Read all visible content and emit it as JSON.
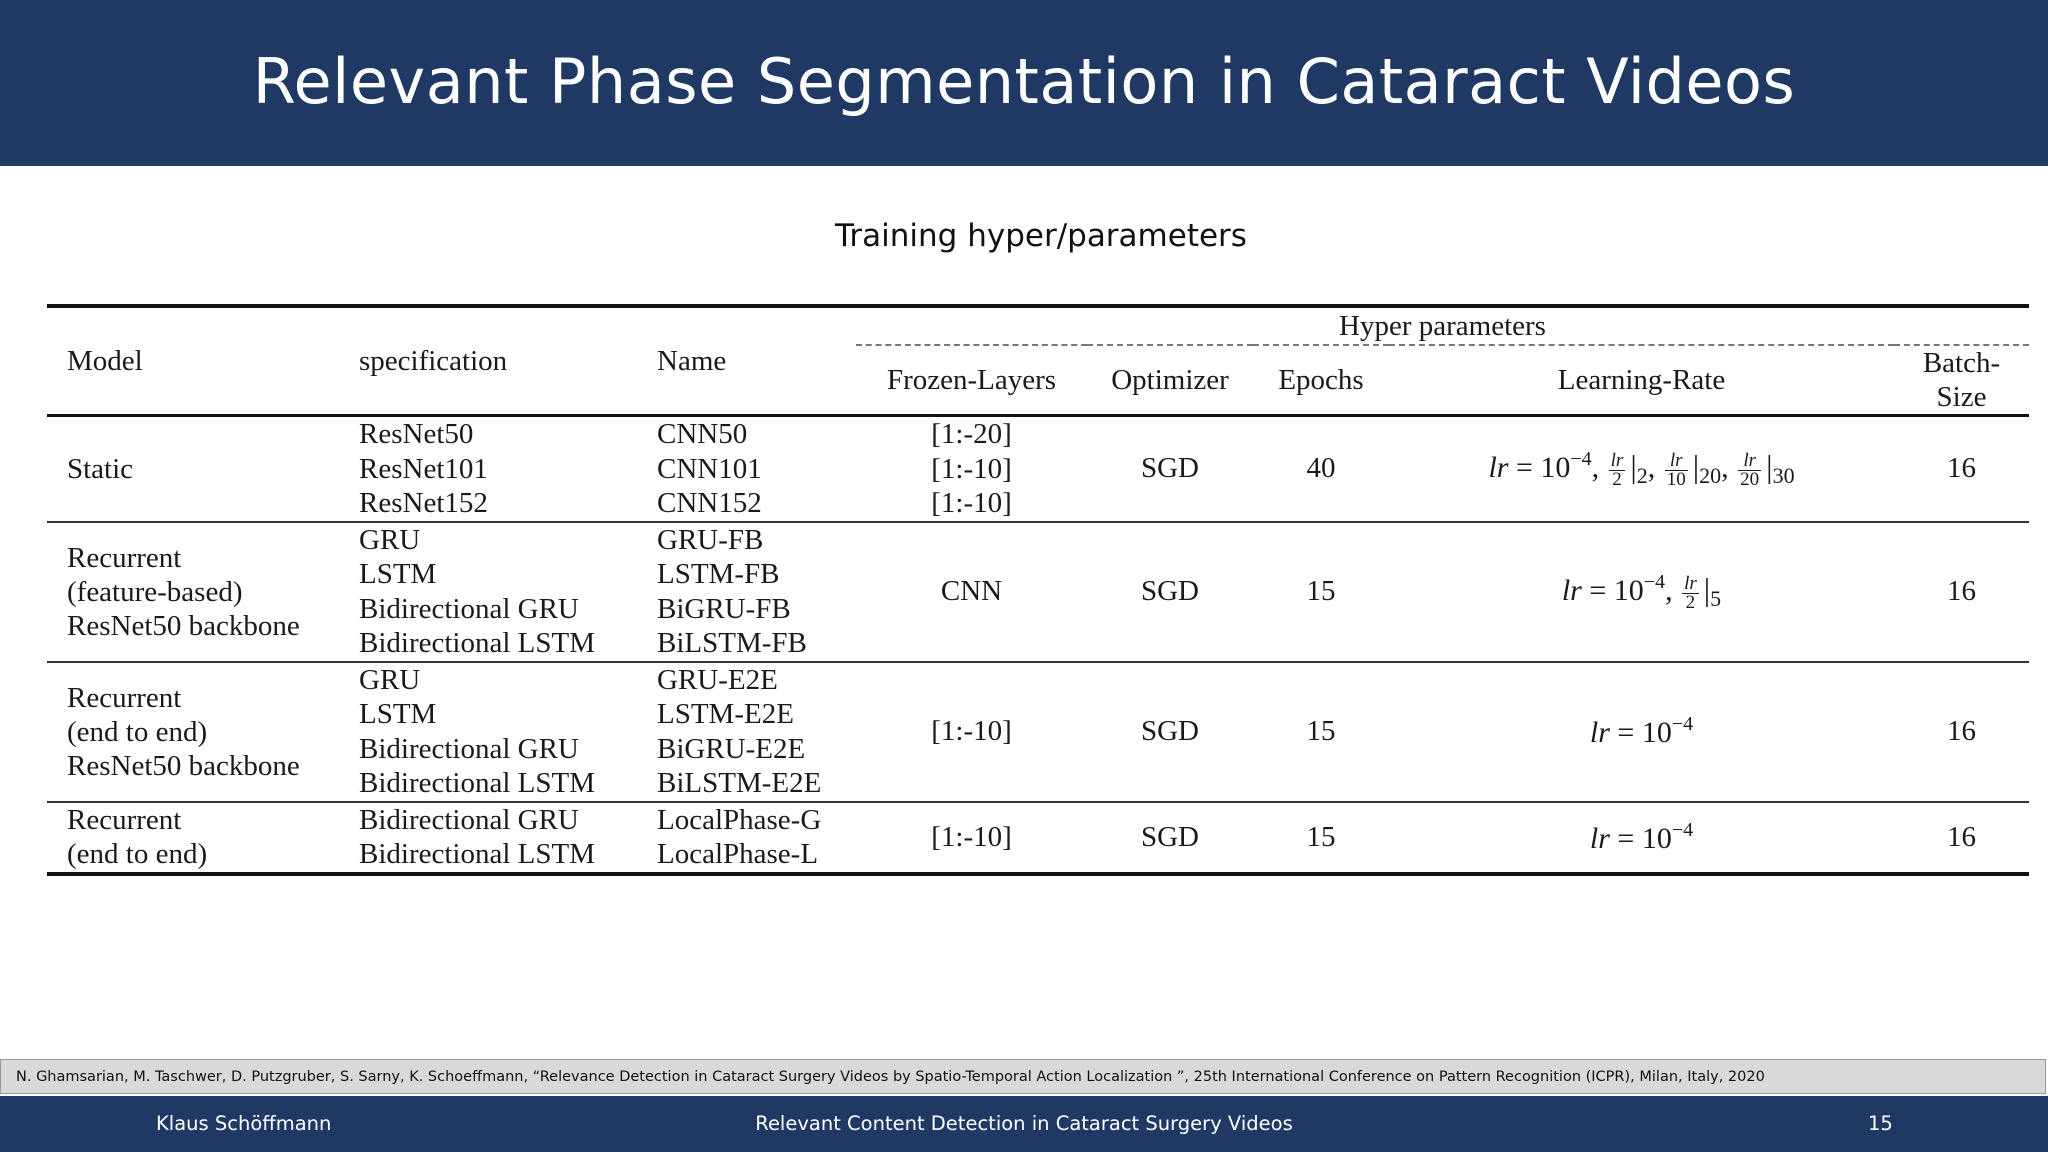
{
  "title": "Relevant Phase Segmentation in Cataract Videos",
  "subtitle": "Training hyper/parameters",
  "table": {
    "headers": {
      "model": "Model",
      "specification": "specification",
      "name": "Name",
      "hyper_group": "Hyper parameters",
      "frozen_layers": "Frozen-Layers",
      "optimizer": "Optimizer",
      "epochs": "Epochs",
      "learning_rate": "Learning-Rate",
      "batch_size": "Batch-Size"
    },
    "rows": [
      {
        "model_lines": [
          "Static"
        ],
        "specifications": [
          "ResNet50",
          "ResNet101",
          "ResNet152"
        ],
        "names": [
          "CNN50",
          "CNN101",
          "CNN152"
        ],
        "frozen_layers": [
          "[1:-20]",
          "[1:-10]",
          "[1:-10]"
        ],
        "optimizer": "SGD",
        "epochs": "40",
        "learning_rate": "lr = 10^-4, lr/2 |2, lr/10 |20, lr/20 |30",
        "batch_size": "16"
      },
      {
        "model_lines": [
          "Recurrent",
          "(feature-based)",
          "ResNet50 backbone"
        ],
        "specifications": [
          "GRU",
          "LSTM",
          "Bidirectional GRU",
          "Bidirectional LSTM"
        ],
        "names": [
          "GRU-FB",
          "LSTM-FB",
          "BiGRU-FB",
          "BiLSTM-FB"
        ],
        "frozen_layers": [
          "CNN"
        ],
        "optimizer": "SGD",
        "epochs": "15",
        "learning_rate": "lr = 10^-4, lr/2 |5",
        "batch_size": "16"
      },
      {
        "model_lines": [
          "Recurrent",
          "(end to end)",
          "ResNet50 backbone"
        ],
        "specifications": [
          "GRU",
          "LSTM",
          "Bidirectional GRU",
          "Bidirectional LSTM"
        ],
        "names": [
          "GRU-E2E",
          "LSTM-E2E",
          "BiGRU-E2E",
          "BiLSTM-E2E"
        ],
        "frozen_layers": [
          "[1:-10]"
        ],
        "optimizer": "SGD",
        "epochs": "15",
        "learning_rate": "lr = 10^-4",
        "batch_size": "16"
      },
      {
        "model_lines": [
          "Recurrent",
          "(end to end)"
        ],
        "specifications": [
          "Bidirectional GRU",
          "Bidirectional LSTM"
        ],
        "names": [
          "LocalPhase-G",
          "LocalPhase-L"
        ],
        "frozen_layers": [
          "[1:-10]"
        ],
        "optimizer": "SGD",
        "epochs": "15",
        "learning_rate": "lr = 10^-4",
        "batch_size": "16"
      }
    ],
    "lr_parts": {
      "lr": "lr",
      "eq": " = 10",
      "exp": "−4",
      "comma": ",",
      "two": "2",
      "ten": "10",
      "twenty": "20",
      "bar": "|",
      "sub2": "2",
      "sub5": "5",
      "sub20": "20",
      "sub30": "30"
    }
  },
  "citation": "N. Ghamsarian, M. Taschwer, D. Putzgruber, S. Sarny, K. Schoeffmann, “Relevance Detection in Cataract Surgery Videos by Spatio-Temporal Action Localization ”, 25th International Conference on Pattern Recognition (ICPR), Milan, Italy, 2020",
  "footer": {
    "author": "Klaus Schöffmann",
    "center": "Relevant Content Detection in Cataract Surgery Videos",
    "page": "15"
  },
  "colors": {
    "title_bar": "#1f3864",
    "footer_bar": "#1f3864",
    "citation_bar": "#d9d9d9"
  }
}
